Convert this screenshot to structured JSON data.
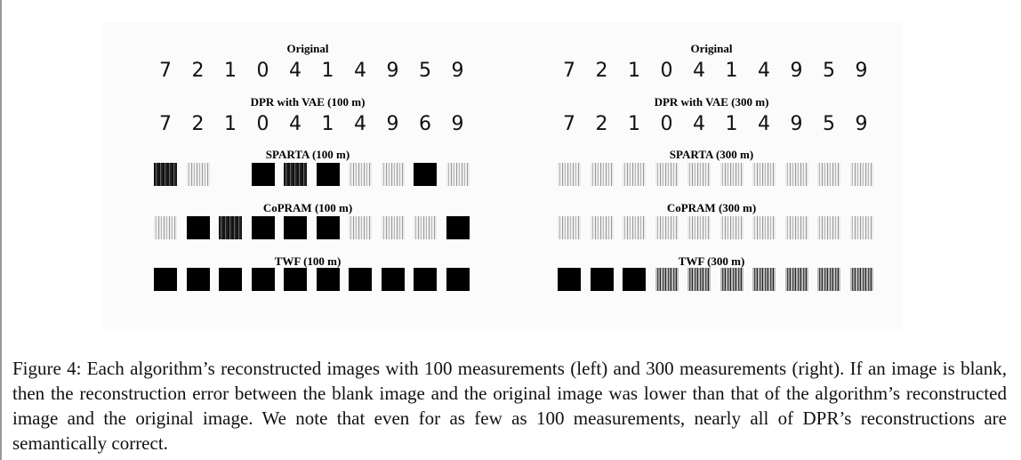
{
  "figure": {
    "left_panel": {
      "rows": [
        {
          "title": "Original",
          "kind": "digits",
          "cells": [
            "7",
            "2",
            "1",
            "0",
            "4",
            "1",
            "4",
            "9",
            "5",
            "9"
          ]
        },
        {
          "title": "DPR with VAE (100 m)",
          "kind": "digits",
          "cells": [
            "7",
            "2",
            "1",
            "0",
            "4",
            "1",
            "4",
            "9",
            "6",
            "9"
          ]
        },
        {
          "title": "SPARTA (100 m)",
          "kind": "recon",
          "cells": [
            "noisy-dark",
            "noisy-light",
            "blank",
            "dark",
            "noisy-dark",
            "dark",
            "noisy-light",
            "noisy-light",
            "dark",
            "noisy-light"
          ]
        },
        {
          "title": "CoPRAM (100 m)",
          "kind": "recon",
          "cells": [
            "noisy-light",
            "dark",
            "noisy-dark",
            "dark",
            "dark",
            "dark",
            "noisy-light",
            "noisy-light",
            "noisy-light",
            "dark"
          ]
        },
        {
          "title": "TWF (100 m)",
          "kind": "recon",
          "cells": [
            "dark",
            "dark",
            "dark",
            "dark",
            "dark",
            "dark",
            "dark",
            "dark",
            "dark",
            "dark"
          ]
        }
      ]
    },
    "right_panel": {
      "rows": [
        {
          "title": "Original",
          "kind": "digits",
          "cells": [
            "7",
            "2",
            "1",
            "0",
            "4",
            "1",
            "4",
            "9",
            "5",
            "9"
          ]
        },
        {
          "title": "DPR with VAE (300 m)",
          "kind": "digits",
          "cells": [
            "7",
            "2",
            "1",
            "0",
            "4",
            "1",
            "4",
            "9",
            "5",
            "9"
          ]
        },
        {
          "title": "SPARTA (300 m)",
          "kind": "recon",
          "cells": [
            "noisy-light",
            "noisy-light",
            "noisy-light",
            "noisy-light",
            "noisy-light",
            "noisy-light",
            "noisy-light",
            "noisy-light",
            "noisy-light",
            "noisy-light"
          ]
        },
        {
          "title": "CoPRAM (300 m)",
          "kind": "recon",
          "cells": [
            "noisy-light",
            "noisy-light",
            "noisy-light",
            "noisy-light",
            "noisy-light",
            "noisy-light",
            "noisy-light",
            "noisy-light",
            "noisy-light",
            "noisy-light"
          ]
        },
        {
          "title": "TWF (300 m)",
          "kind": "recon",
          "cells": [
            "dark",
            "dark",
            "dark",
            "noisy-mid",
            "noisy-mid",
            "noisy-mid",
            "noisy-mid",
            "noisy-mid",
            "noisy-mid",
            "noisy-mid"
          ]
        }
      ]
    }
  },
  "caption": "Figure 4: Each algorithm’s reconstructed images with 100 measurements (left) and 300 measurements (right). If an image is blank, then the reconstruction error between the blank image and the original image was lower than that of the algorithm’s reconstructed image and the original image. We note that even for as few as 100 measurements, nearly all of DPR’s reconstructions are semantically correct."
}
